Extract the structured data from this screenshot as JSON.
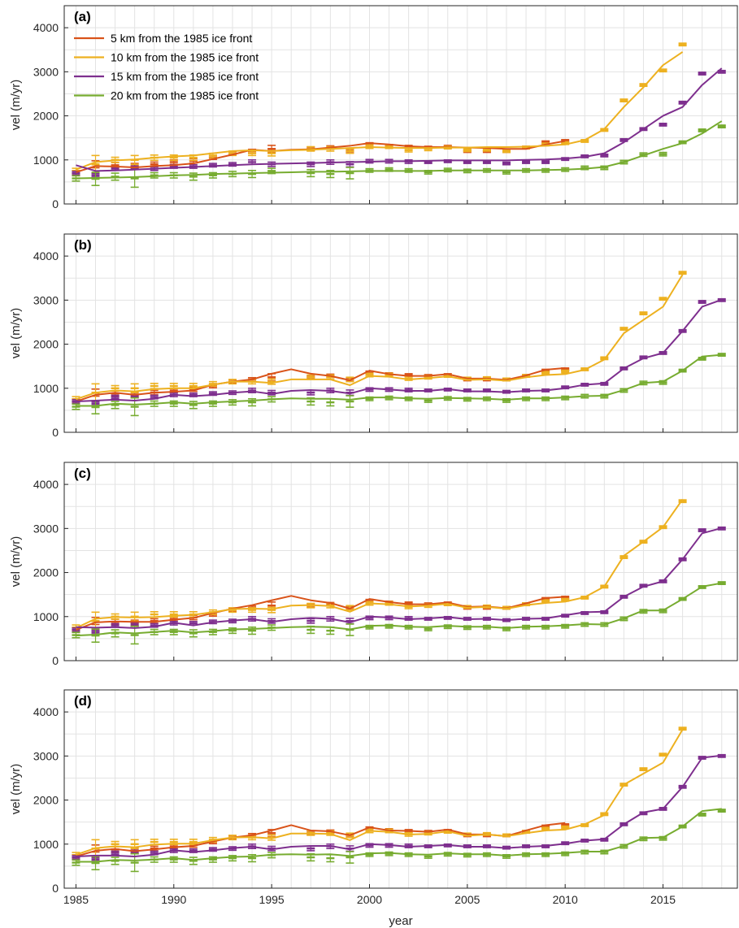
{
  "chart_data": {
    "type": "line",
    "xlabel": "year",
    "ylabel": "vel (m/yr)",
    "xlim": [
      1984.4,
      2018.8
    ],
    "ylim": [
      0,
      4500
    ],
    "xticks": [
      1985,
      1990,
      1995,
      2000,
      2005,
      2010,
      2015
    ],
    "yticks": [
      0,
      1000,
      2000,
      3000,
      4000
    ],
    "grid": true,
    "legend_placement": "top-left",
    "colors": {
      "5km": "#d95319",
      "10km": "#edb120",
      "15km": "#7e2f8e",
      "20km": "#77ac30"
    },
    "legend": [
      {
        "key": "5km",
        "label": "5 km from the 1985 ice front"
      },
      {
        "key": "10km",
        "label": "10 km from the 1985 ice front"
      },
      {
        "key": "15km",
        "label": "15 km from the 1985 ice front"
      },
      {
        "key": "20km",
        "label": "20 km from the 1985 ice front"
      }
    ],
    "observations": {
      "years": [
        1985,
        1986,
        1987,
        1988,
        1989,
        1990,
        1991,
        1992,
        1993,
        1994,
        1995,
        1996,
        1997,
        1998,
        1999,
        2000,
        2001,
        2002,
        2003,
        2004,
        2005,
        2006,
        2007,
        2008,
        2009,
        2010,
        2011,
        2012,
        2013,
        2014,
        2015,
        2016,
        2017,
        2018
      ],
      "series": [
        {
          "key": "5km",
          "values": [
            700,
            900,
            880,
            860,
            900,
            950,
            980,
            1050,
            1150,
            1200,
            1250,
            null,
            1250,
            1280,
            1200,
            1350,
            1320,
            1300,
            1280,
            1300,
            1200,
            1200,
            1200,
            1280,
            1400,
            1430,
            null,
            null,
            null,
            null,
            null,
            null,
            null,
            null
          ],
          "errors": [
            60,
            80,
            60,
            60,
            50,
            50,
            50,
            40,
            40,
            40,
            80,
            0,
            40,
            40,
            40,
            40,
            30,
            30,
            30,
            30,
            30,
            30,
            30,
            30,
            30,
            30,
            0,
            0,
            0,
            0,
            0,
            0,
            0,
            0
          ]
        },
        {
          "key": "10km",
          "values": [
            750,
            900,
            1000,
            1000,
            1050,
            1050,
            1050,
            1100,
            1150,
            1150,
            1150,
            null,
            1250,
            1250,
            1200,
            1300,
            1300,
            1220,
            1250,
            1280,
            1220,
            1230,
            1200,
            1280,
            1350,
            1380,
            1430,
            1680,
            2350,
            2700,
            3030,
            3620,
            null,
            null
          ],
          "errors": [
            60,
            200,
            60,
            100,
            60,
            60,
            60,
            50,
            50,
            50,
            60,
            0,
            50,
            50,
            50,
            40,
            40,
            40,
            40,
            30,
            30,
            30,
            30,
            30,
            30,
            30,
            30,
            30,
            30,
            30,
            30,
            30,
            0,
            0
          ]
        },
        {
          "key": "15km",
          "values": [
            700,
            650,
            800,
            820,
            800,
            850,
            850,
            880,
            900,
            950,
            900,
            null,
            900,
            950,
            900,
            970,
            970,
            960,
            950,
            970,
            950,
            950,
            920,
            950,
            950,
            1020,
            1080,
            1100,
            1450,
            1700,
            1800,
            2300,
            2960,
            3000
          ],
          "errors": [
            40,
            40,
            40,
            40,
            40,
            40,
            40,
            40,
            40,
            50,
            50,
            0,
            50,
            50,
            60,
            40,
            40,
            40,
            30,
            30,
            30,
            30,
            30,
            30,
            30,
            30,
            30,
            30,
            30,
            30,
            30,
            30,
            30,
            30
          ]
        },
        {
          "key": "20km",
          "values": [
            580,
            570,
            620,
            580,
            650,
            650,
            620,
            650,
            680,
            680,
            750,
            null,
            700,
            680,
            700,
            760,
            780,
            760,
            720,
            770,
            750,
            760,
            720,
            760,
            760,
            780,
            820,
            820,
            950,
            1120,
            1130,
            1400,
            1670,
            1760
          ],
          "errors": [
            60,
            150,
            80,
            200,
            60,
            60,
            80,
            60,
            60,
            80,
            60,
            0,
            80,
            80,
            130,
            40,
            40,
            40,
            40,
            40,
            40,
            40,
            40,
            40,
            40,
            40,
            40,
            40,
            40,
            40,
            40,
            30,
            30,
            30
          ]
        }
      ]
    },
    "panels": [
      {
        "label": "(a)",
        "series": [
          {
            "key": "5km",
            "values": [
              720,
              860,
              850,
              830,
              860,
              880,
              920,
              1020,
              1120,
              1230,
              1200,
              1230,
              1240,
              1280,
              1320,
              1380,
              1350,
              1310,
              1290,
              1290,
              1280,
              1270,
              1250,
              1250,
              1350,
              1430,
              null,
              null,
              null,
              null,
              null,
              null,
              null,
              null
            ]
          },
          {
            "key": "10km",
            "values": [
              780,
              950,
              990,
              1010,
              1050,
              1080,
              1100,
              1150,
              1200,
              1220,
              1200,
              1220,
              1230,
              1250,
              1270,
              1290,
              1280,
              1270,
              1270,
              1280,
              1280,
              1290,
              1290,
              1300,
              1320,
              1350,
              1450,
              1700,
              2200,
              2650,
              3150,
              3450,
              null,
              null
            ]
          },
          {
            "key": "15km",
            "values": [
              880,
              750,
              760,
              780,
              800,
              820,
              840,
              860,
              880,
              900,
              910,
              920,
              930,
              940,
              950,
              960,
              970,
              970,
              980,
              990,
              990,
              990,
              990,
              1000,
              1010,
              1030,
              1070,
              1150,
              1400,
              1700,
              2000,
              2200,
              2700,
              3080
            ]
          },
          {
            "key": "20km",
            "values": [
              580,
              590,
              600,
              610,
              630,
              650,
              660,
              680,
              690,
              700,
              710,
              720,
              730,
              730,
              740,
              750,
              750,
              750,
              750,
              760,
              760,
              760,
              760,
              760,
              770,
              780,
              800,
              840,
              950,
              1100,
              1250,
              1380,
              1600,
              1880
            ]
          }
        ]
      },
      {
        "label": "(b)",
        "series": [
          {
            "key": "5km",
            "values": [
              700,
              850,
              900,
              850,
              900,
              920,
              950,
              1080,
              1150,
              1200,
              1330,
              1430,
              1330,
              1280,
              1180,
              1400,
              1320,
              1280,
              1280,
              1320,
              1220,
              1220,
              1190,
              1290,
              1420,
              1460,
              null,
              null,
              null,
              null,
              null,
              null,
              null,
              null
            ]
          },
          {
            "key": "10km",
            "values": [
              750,
              900,
              950,
              930,
              980,
              1000,
              1000,
              1080,
              1150,
              1150,
              1120,
              1200,
              1200,
              1200,
              1070,
              1280,
              1260,
              1200,
              1230,
              1270,
              1190,
              1200,
              1170,
              1250,
              1300,
              1320,
              1420,
              1650,
              2250,
              2550,
              2850,
              3580,
              null,
              null
            ]
          },
          {
            "key": "15km",
            "values": [
              700,
              720,
              740,
              720,
              760,
              850,
              820,
              850,
              900,
              930,
              870,
              940,
              960,
              940,
              880,
              1000,
              970,
              940,
              940,
              980,
              930,
              930,
              910,
              940,
              950,
              1000,
              1080,
              1110,
              1450,
              1680,
              1800,
              2300,
              2850,
              3010
            ]
          },
          {
            "key": "20km",
            "values": [
              600,
              600,
              650,
              630,
              650,
              680,
              650,
              680,
              700,
              720,
              750,
              770,
              760,
              760,
              740,
              790,
              790,
              770,
              760,
              780,
              770,
              760,
              740,
              770,
              770,
              790,
              820,
              830,
              960,
              1120,
              1150,
              1400,
              1720,
              1760
            ]
          }
        ]
      },
      {
        "label": "(c)",
        "series": [
          {
            "key": "5km",
            "values": [
              700,
              870,
              890,
              880,
              880,
              930,
              970,
              1080,
              1180,
              1260,
              1370,
              1470,
              1370,
              1310,
              1180,
              1400,
              1330,
              1280,
              1280,
              1320,
              1220,
              1230,
              1190,
              1300,
              1420,
              1450,
              null,
              null,
              null,
              null,
              null,
              null,
              null,
              null
            ]
          },
          {
            "key": "10km",
            "values": [
              740,
              950,
              990,
              980,
              990,
              1020,
              1040,
              1100,
              1170,
              1180,
              1170,
              1250,
              1260,
              1240,
              1110,
              1300,
              1280,
              1230,
              1250,
              1290,
              1200,
              1220,
              1180,
              1260,
              1310,
              1340,
              1440,
              1680,
              2380,
              2700,
              3030,
              3660,
              null,
              null
            ]
          },
          {
            "key": "15km",
            "values": [
              760,
              750,
              760,
              740,
              770,
              860,
              800,
              870,
              910,
              940,
              880,
              940,
              970,
              950,
              870,
              1000,
              980,
              940,
              960,
              990,
              940,
              950,
              920,
              950,
              960,
              1030,
              1100,
              1110,
              1450,
              1680,
              1800,
              2300,
              2890,
              3010
            ]
          },
          {
            "key": "20km",
            "values": [
              570,
              590,
              640,
              620,
              650,
              680,
              640,
              670,
              710,
              720,
              740,
              760,
              770,
              760,
              710,
              790,
              800,
              770,
              760,
              790,
              770,
              770,
              740,
              770,
              780,
              800,
              830,
              820,
              960,
              1140,
              1140,
              1400,
              1680,
              1760
            ]
          }
        ]
      },
      {
        "label": "(d)",
        "series": [
          {
            "key": "5km",
            "values": [
              720,
              850,
              890,
              840,
              880,
              930,
              960,
              1060,
              1150,
              1200,
              1310,
              1430,
              1310,
              1290,
              1200,
              1380,
              1310,
              1300,
              1280,
              1330,
              1220,
              1220,
              1180,
              1310,
              1430,
              1480,
              null,
              null,
              null,
              null,
              null,
              null,
              null,
              null
            ]
          },
          {
            "key": "10km",
            "values": [
              760,
              910,
              950,
              930,
              990,
              1010,
              1010,
              1090,
              1150,
              1160,
              1130,
              1240,
              1240,
              1230,
              1090,
              1300,
              1280,
              1220,
              1230,
              1290,
              1190,
              1220,
              1180,
              1250,
              1310,
              1330,
              1450,
              1660,
              2350,
              2600,
              2850,
              3600,
              null,
              null
            ]
          },
          {
            "key": "15km",
            "values": [
              720,
              740,
              740,
              720,
              760,
              860,
              820,
              860,
              910,
              940,
              880,
              940,
              960,
              960,
              880,
              1000,
              980,
              940,
              960,
              980,
              940,
              940,
              910,
              940,
              960,
              1010,
              1080,
              1110,
              1450,
              1720,
              1800,
              2300,
              2960,
              3010
            ]
          },
          {
            "key": "20km",
            "values": [
              600,
              600,
              640,
              630,
              650,
              680,
              640,
              680,
              710,
              720,
              760,
              770,
              760,
              770,
              730,
              790,
              800,
              770,
              760,
              790,
              770,
              770,
              740,
              770,
              780,
              800,
              830,
              830,
              960,
              1140,
              1150,
              1400,
              1750,
              1800
            ]
          }
        ]
      }
    ]
  }
}
